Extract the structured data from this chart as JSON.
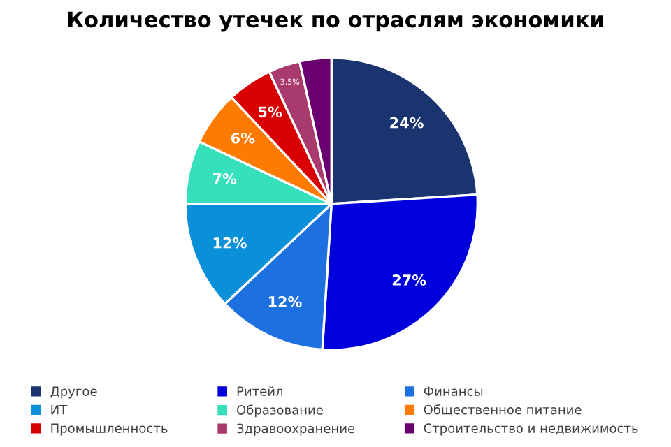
{
  "chart_data": {
    "type": "pie",
    "title": "Количество утечек по отраслям экономики",
    "categories": [
      "Другое",
      "Ритейл",
      "Финансы",
      "ИТ",
      "Образование",
      "Общественное питание",
      "Промышленность",
      "Здравоохранение",
      "Строительство и недвижимость"
    ],
    "values": [
      24,
      27,
      12,
      12,
      7,
      6,
      5,
      3.5,
      3.5
    ],
    "value_labels": [
      "24%",
      "27%",
      "12%",
      "12%",
      "7%",
      "6%",
      "5%",
      "3,5%",
      null
    ],
    "colors": [
      "#1a3470",
      "#0000dc",
      "#1c70e0",
      "#0a90d8",
      "#36e0bc",
      "#ff7a00",
      "#d80000",
      "#a83a6e",
      "#6a0070"
    ],
    "legend": "bottom"
  }
}
